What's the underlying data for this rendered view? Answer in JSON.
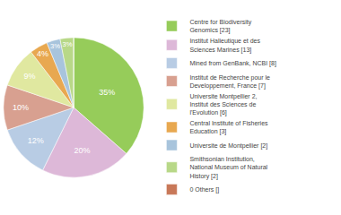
{
  "chart_data": {
    "type": "pie",
    "categories": [
      "Centre for Biodiversity\nGenomics [23]",
      "Institut Halieutique et des\nSciences Marines [13]",
      "Mined from GenBank, NCBI [8]",
      "Institut de Recherche pour le\nDeveloppement, France [7]",
      "Universite Montpellier 2,\nInstitut des Sciences de\nl'Evolution [6]",
      "Central Institute of Fisheries\nEducation [3]",
      "Universite de Montpellier [2]",
      "Smithsonian Institution,\nNational Museum of Natural\nHistory [2]",
      "0 Others []"
    ],
    "values": [
      35,
      20,
      12,
      10,
      9,
      4,
      3,
      3,
      0.0016
    ],
    "value_labels": [
      "35%",
      "20%",
      "12%",
      "10%",
      "9%",
      "4%",
      "3%",
      "3%",
      null
    ],
    "colors": [
      "#96cc5a",
      "#ddb8d8",
      "#b8cce4",
      "#d8a090",
      "#e0e8a0",
      "#e8a850",
      "#a8c4dc",
      "#b8d888",
      "#c87858"
    ],
    "legend": "right",
    "data_labels": true
  }
}
